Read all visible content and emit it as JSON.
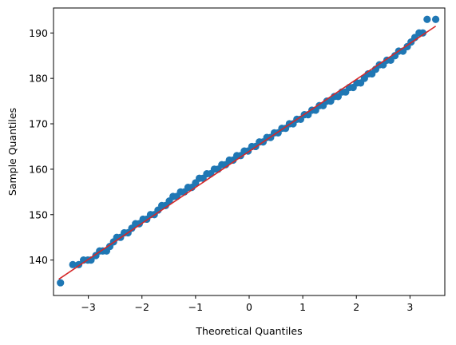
{
  "chart_data": {
    "type": "scatter",
    "title": "",
    "xlabel": "Theoretical Quantiles",
    "ylabel": "Sample Quantiles",
    "xlim": [
      -3.65,
      3.65
    ],
    "ylim": [
      132.2,
      195.5
    ],
    "xticks": [
      -3,
      -2,
      -1,
      0,
      1,
      2,
      3
    ],
    "yticks": [
      140,
      150,
      160,
      170,
      180,
      190
    ],
    "grid": false,
    "legend": "none",
    "marker_color": "#1f77b4",
    "line_color": "#d62728",
    "reference_line": {
      "x": [
        -3.55,
        3.48
      ],
      "y": [
        135.8,
        191.5
      ]
    },
    "series": [
      {
        "values": [
          [
            -3.52,
            135
          ],
          [
            -3.29,
            139
          ],
          [
            -3.18,
            139
          ],
          [
            -3.09,
            140
          ],
          [
            -3.01,
            140
          ],
          [
            -2.95,
            140
          ],
          [
            -2.86,
            141
          ],
          [
            -2.79,
            142
          ],
          [
            -2.73,
            142
          ],
          [
            -2.66,
            142
          ],
          [
            -2.6,
            143
          ],
          [
            -2.53,
            144
          ],
          [
            -2.47,
            145
          ],
          [
            -2.4,
            145
          ],
          [
            -2.33,
            146
          ],
          [
            -2.26,
            146
          ],
          [
            -2.19,
            147
          ],
          [
            -2.12,
            148
          ],
          [
            -2.05,
            148
          ],
          [
            -1.98,
            149
          ],
          [
            -1.91,
            149
          ],
          [
            -1.84,
            150
          ],
          [
            -1.77,
            150
          ],
          [
            -1.7,
            151
          ],
          [
            -1.63,
            152
          ],
          [
            -1.56,
            152
          ],
          [
            -1.49,
            153
          ],
          [
            -1.42,
            154
          ],
          [
            -1.35,
            154
          ],
          [
            -1.28,
            155
          ],
          [
            -1.21,
            155
          ],
          [
            -1.14,
            156
          ],
          [
            -1.07,
            156
          ],
          [
            -1.0,
            157
          ],
          [
            -0.93,
            158
          ],
          [
            -0.86,
            158
          ],
          [
            -0.79,
            159
          ],
          [
            -0.72,
            159
          ],
          [
            -0.65,
            160
          ],
          [
            -0.58,
            160
          ],
          [
            -0.51,
            161
          ],
          [
            -0.44,
            161
          ],
          [
            -0.37,
            162
          ],
          [
            -0.3,
            162
          ],
          [
            -0.23,
            163
          ],
          [
            -0.16,
            163
          ],
          [
            -0.09,
            164
          ],
          [
            -0.02,
            164
          ],
          [
            0.05,
            165
          ],
          [
            0.12,
            165
          ],
          [
            0.19,
            166
          ],
          [
            0.26,
            166
          ],
          [
            0.33,
            167
          ],
          [
            0.4,
            167
          ],
          [
            0.47,
            168
          ],
          [
            0.54,
            168
          ],
          [
            0.61,
            169
          ],
          [
            0.68,
            169
          ],
          [
            0.75,
            170
          ],
          [
            0.82,
            170
          ],
          [
            0.89,
            171
          ],
          [
            0.96,
            171
          ],
          [
            1.03,
            172
          ],
          [
            1.1,
            172
          ],
          [
            1.17,
            173
          ],
          [
            1.24,
            173
          ],
          [
            1.31,
            174
          ],
          [
            1.38,
            174
          ],
          [
            1.45,
            175
          ],
          [
            1.52,
            175
          ],
          [
            1.59,
            176
          ],
          [
            1.66,
            176
          ],
          [
            1.73,
            177
          ],
          [
            1.8,
            177
          ],
          [
            1.87,
            178
          ],
          [
            1.94,
            178
          ],
          [
            2.01,
            179
          ],
          [
            2.08,
            179
          ],
          [
            2.15,
            180
          ],
          [
            2.22,
            181
          ],
          [
            2.29,
            181
          ],
          [
            2.36,
            182
          ],
          [
            2.43,
            183
          ],
          [
            2.5,
            183
          ],
          [
            2.57,
            184
          ],
          [
            2.64,
            184
          ],
          [
            2.72,
            185
          ],
          [
            2.79,
            186
          ],
          [
            2.87,
            186
          ],
          [
            2.95,
            187
          ],
          [
            3.02,
            188
          ],
          [
            3.09,
            189
          ],
          [
            3.17,
            190
          ],
          [
            3.24,
            190
          ],
          [
            3.32,
            193
          ],
          [
            3.48,
            193
          ]
        ]
      }
    ]
  }
}
